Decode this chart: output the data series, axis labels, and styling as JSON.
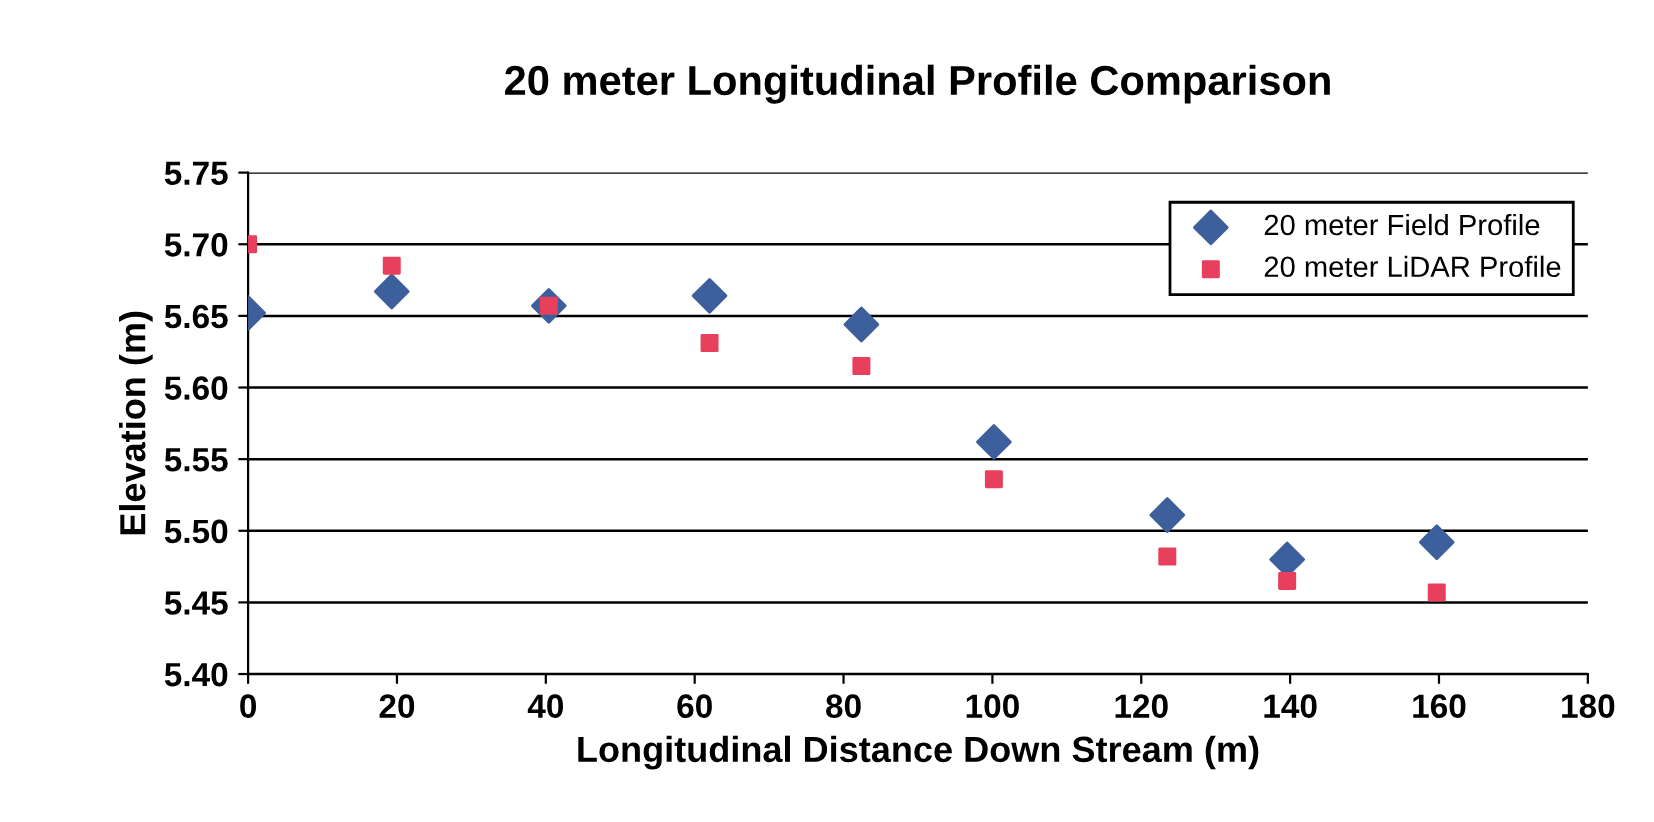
{
  "chart_data": {
    "type": "scatter",
    "title": "20 meter Longitudinal Profile Comparison",
    "xlabel": "Longitudinal Distance Down Stream (m)",
    "ylabel": "Elevation (m)",
    "series": [
      {
        "name": "20 meter Field Profile",
        "color": "#3d5f9c",
        "marker": "diamond",
        "x": [
          0,
          19.3,
          40.4,
          62,
          82.4,
          100.2,
          123.5,
          139.6,
          159.7
        ],
        "values": [
          5.652,
          5.667,
          5.657,
          5.664,
          5.644,
          5.562,
          5.511,
          5.48,
          5.492
        ]
      },
      {
        "name": "20 meter LiDAR Profile",
        "color": "#e8405c",
        "marker": "square",
        "x": [
          0,
          19.3,
          40.4,
          62,
          82.4,
          100.2,
          123.5,
          139.6,
          159.7
        ],
        "values": [
          5.7,
          5.685,
          5.657,
          5.631,
          5.615,
          5.536,
          5.482,
          5.465,
          5.457
        ]
      }
    ],
    "xlim": [
      0,
      180
    ],
    "xticks": [
      0,
      20,
      40,
      60,
      80,
      100,
      120,
      140,
      160,
      180
    ],
    "ylim": [
      5.4,
      5.75
    ],
    "yticks": [
      {
        "value": 5.4,
        "label": "5.40"
      },
      {
        "value": 5.45,
        "label": "5.45"
      },
      {
        "value": 5.5,
        "label": "5.50"
      },
      {
        "value": 5.55,
        "label": "5.55"
      },
      {
        "value": 5.6,
        "label": "5.60"
      },
      {
        "value": 5.65,
        "label": "5.65"
      },
      {
        "value": 5.7,
        "label": "5.70"
      },
      {
        "value": 5.75,
        "label": "5.75"
      }
    ],
    "grid": "y",
    "legend": "top right"
  }
}
